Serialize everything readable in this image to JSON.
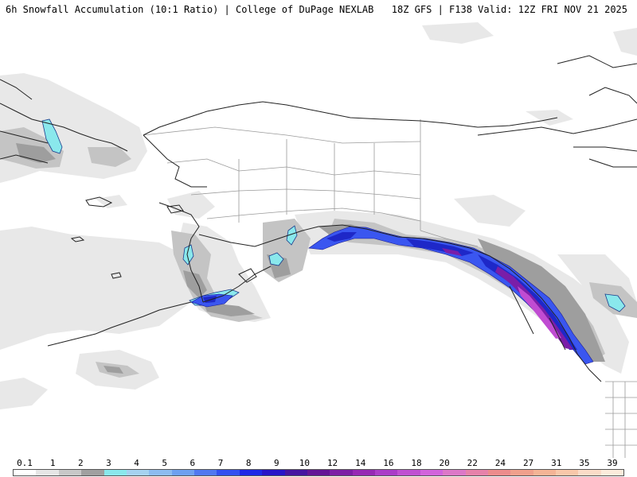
{
  "header": {
    "title": "6h Snowfall Accumulation (10:1 Ratio) | College of DuPage NEXLAB",
    "valid": "18Z GFS | F138 Valid: 12Z FRI NOV 21 2025"
  },
  "legend": {
    "labels": [
      "0.1",
      "1",
      "2",
      "3",
      "4",
      "5",
      "6",
      "7",
      "8",
      "9",
      "10",
      "12",
      "14",
      "16",
      "18",
      "20",
      "22",
      "24",
      "27",
      "31",
      "35",
      "39"
    ],
    "colors": [
      "#ffffff",
      "#e6e6e6",
      "#c8c8c8",
      "#a0a0a0",
      "#8ae8ec",
      "#a6d2f0",
      "#8cbcf0",
      "#6ea0f0",
      "#5078f0",
      "#3250f0",
      "#1e28e6",
      "#2814c8",
      "#4614a0",
      "#641496",
      "#7d1ea5",
      "#9628b4",
      "#aa3cc8",
      "#c050d2",
      "#d264dc",
      "#dc78c8",
      "#e682aa",
      "#ec8c8c",
      "#f0a08c",
      "#f4b496",
      "#f8c8aa",
      "#fadcc8",
      "#fcecdc"
    ]
  },
  "map": {
    "region": "Alaska and Western Canada",
    "colors": {
      "land_border": "#222222",
      "political_border": "#9a9a9a",
      "snow_trace": "#e6e6e6",
      "snow_light": "#c8c8c8",
      "snow_gray": "#a0a0a0",
      "snow_cyan": "#8ae8ec",
      "snow_blue": "#3250f0",
      "snow_deep_blue": "#1e28e6",
      "snow_purple": "#7d1ea5",
      "snow_magenta": "#c050d2"
    }
  }
}
